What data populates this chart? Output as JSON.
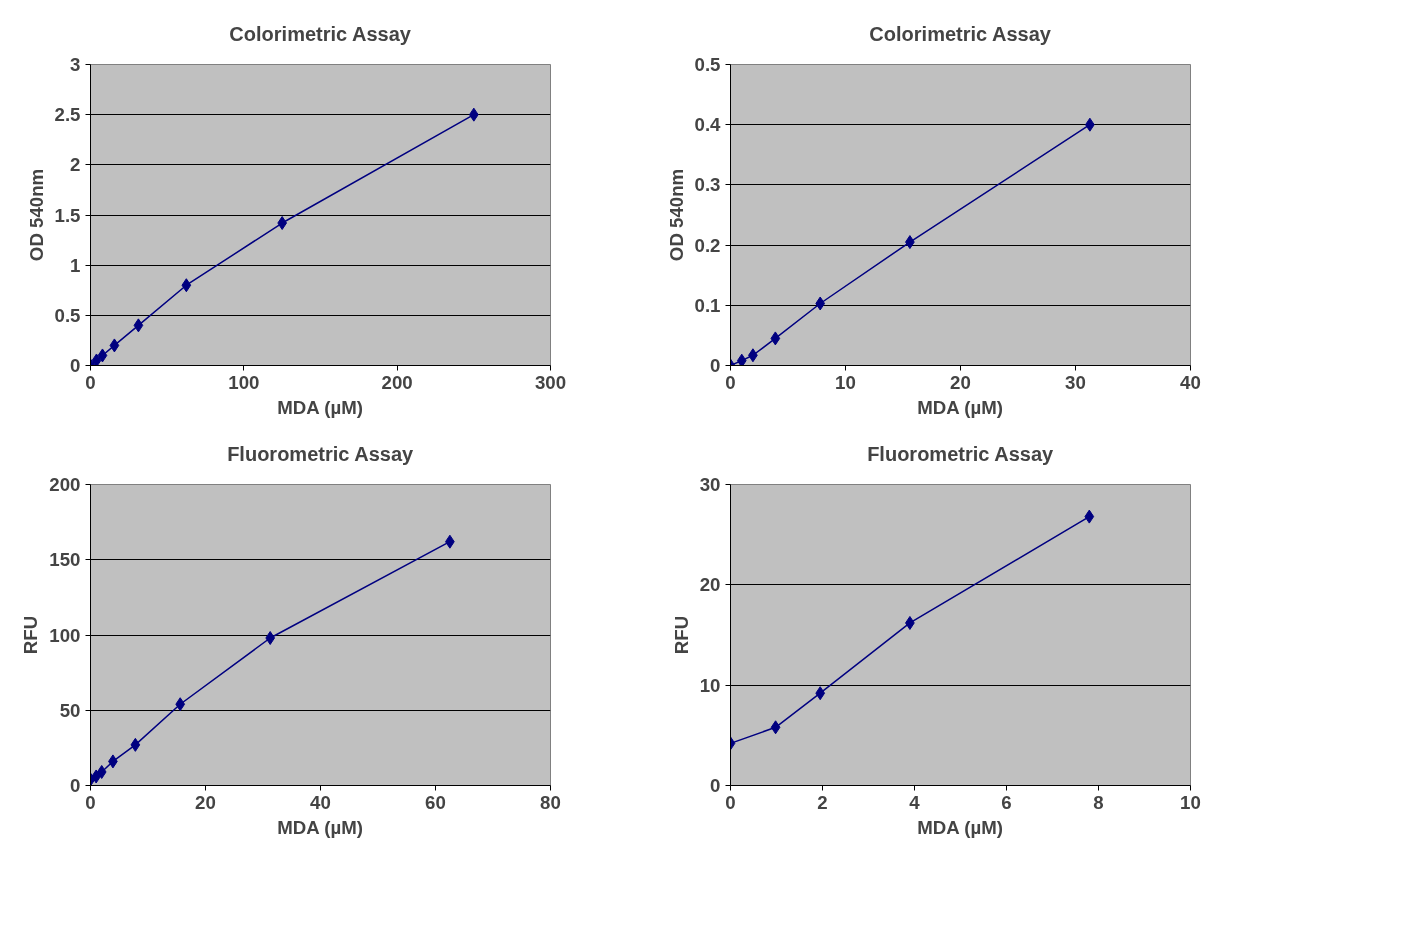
{
  "chart_data": [
    {
      "type": "line",
      "title": "Colorimetric Assay",
      "xlabel": "MDA (µM)",
      "ylabel": "OD 540nm",
      "xlim": [
        0,
        300
      ],
      "xticks": [
        0,
        100,
        200,
        300
      ],
      "ylim": [
        0,
        3
      ],
      "yticks": [
        0,
        0.5,
        1,
        1.5,
        2,
        2.5,
        3
      ],
      "grid": "y",
      "marker": "diamond",
      "line_style": "solid",
      "series": [
        {
          "color": "#000080",
          "x": [
            0,
            3.9,
            7.8,
            15.6,
            31.25,
            62.5,
            125,
            250
          ],
          "values": [
            0,
            0.05,
            0.1,
            0.2,
            0.4,
            0.8,
            1.42,
            2.5
          ]
        }
      ]
    },
    {
      "type": "line",
      "title": "Colorimetric Assay",
      "xlabel": "MDA (µM)",
      "ylabel": "OD 540nm",
      "xlim": [
        0,
        40
      ],
      "xticks": [
        0,
        10,
        20,
        30,
        40
      ],
      "ylim": [
        0,
        0.5
      ],
      "yticks": [
        0,
        0.1,
        0.2,
        0.3,
        0.4,
        0.5
      ],
      "grid": "y",
      "marker": "diamond",
      "line_style": "solid",
      "series": [
        {
          "color": "#000080",
          "x": [
            0,
            0.98,
            1.95,
            3.9,
            7.8,
            15.6,
            31.25
          ],
          "values": [
            0,
            0.008,
            0.017,
            0.045,
            0.103,
            0.205,
            0.4
          ]
        }
      ]
    },
    {
      "type": "line",
      "title": "Fluorometric Assay",
      "xlabel": "MDA (µM)",
      "ylabel": "RFU",
      "xlim": [
        0,
        80
      ],
      "xticks": [
        0,
        20,
        40,
        60,
        80
      ],
      "ylim": [
        0,
        200
      ],
      "yticks": [
        0,
        50,
        100,
        150,
        200
      ],
      "grid": "y",
      "marker": "diamond",
      "line_style": "solid",
      "series": [
        {
          "color": "#000080",
          "x": [
            0,
            0.98,
            1.95,
            3.9,
            7.8,
            15.6,
            31.25,
            62.5
          ],
          "values": [
            4,
            6,
            9,
            16,
            27,
            54,
            98,
            162
          ]
        }
      ]
    },
    {
      "type": "line",
      "title": "Fluorometric Assay",
      "xlabel": "MDA (µM)",
      "ylabel": "RFU",
      "xlim": [
        0,
        10
      ],
      "xticks": [
        0,
        2,
        4,
        6,
        8,
        10
      ],
      "ylim": [
        0,
        30
      ],
      "yticks": [
        0,
        10,
        20,
        30
      ],
      "grid": "y",
      "marker": "diamond",
      "line_style": "solid",
      "series": [
        {
          "color": "#000080",
          "x": [
            0,
            0.98,
            1.95,
            3.9,
            7.8
          ],
          "values": [
            4.2,
            5.8,
            9.2,
            16.2,
            26.8
          ]
        }
      ]
    }
  ]
}
